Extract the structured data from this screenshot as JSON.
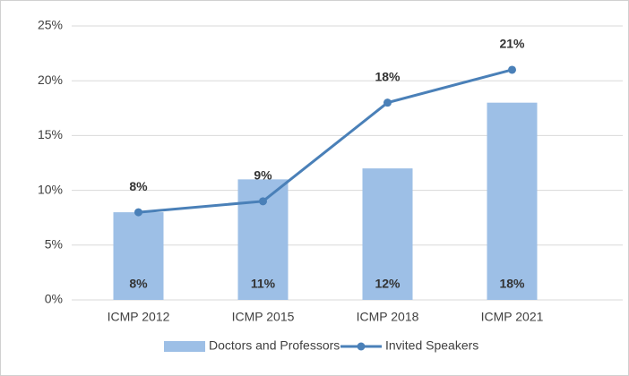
{
  "chart_data": {
    "type": "combo",
    "categories": [
      "ICMP 2012",
      "ICMP 2015",
      "ICMP 2018",
      "ICMP 2021"
    ],
    "series": [
      {
        "name": "Doctors and Professors",
        "type": "bar",
        "color": "#9dbfe6",
        "values": [
          8,
          11,
          12,
          18
        ],
        "value_labels": [
          "8%",
          "11%",
          "12%",
          "18%"
        ]
      },
      {
        "name": "Invited Speakers",
        "type": "line",
        "color": "#4a80b8",
        "values": [
          8,
          9,
          18,
          21
        ],
        "value_labels": [
          "8%",
          "9%",
          "18%",
          "21%"
        ]
      }
    ],
    "ylim": [
      0,
      25
    ],
    "yticks": [
      {
        "value": 0,
        "label": "0%"
      },
      {
        "value": 5,
        "label": "5%"
      },
      {
        "value": 10,
        "label": "10%"
      },
      {
        "value": 15,
        "label": "15%"
      },
      {
        "value": 20,
        "label": "20%"
      },
      {
        "value": 25,
        "label": "25%"
      }
    ],
    "grid": true,
    "legend": "bottom"
  }
}
